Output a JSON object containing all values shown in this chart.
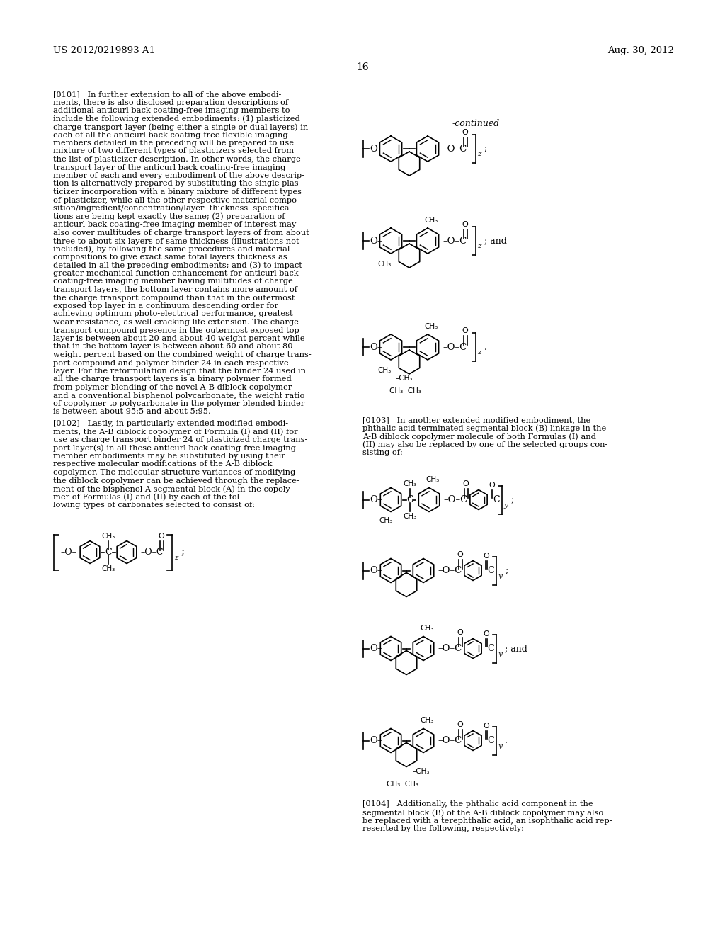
{
  "bg_color": "#ffffff",
  "header_left": "US 2012/0219893 A1",
  "header_right": "Aug. 30, 2012",
  "page_number": "16",
  "p101_lines": [
    "[0101]   In further extension to all of the above embodi-",
    "ments, there is also disclosed preparation descriptions of",
    "additional anticurl back coating-free imaging members to",
    "include the following extended embodiments: (1) plasticized",
    "charge transport layer (being either a single or dual layers) in",
    "each of all the anticurl back coating-free flexible imaging",
    "members detailed in the preceding will be prepared to use",
    "mixture of two different types of plasticizers selected from",
    "the list of plasticizer description. In other words, the charge",
    "transport layer of the anticurl back coating-free imaging",
    "member of each and every embodiment of the above descrip-",
    "tion is alternatively prepared by substituting the single plas-",
    "ticizer incorporation with a binary mixture of different types",
    "of plasticizer, while all the other respective material compo-",
    "sition/ingredient/concentration/layer  thickness  specifica-",
    "tions are being kept exactly the same; (2) preparation of",
    "anticurl back coating-free imaging member of interest may",
    "also cover multitudes of charge transport layers of from about",
    "three to about six layers of same thickness (illustrations not",
    "included), by following the same procedures and material",
    "compositions to give exact same total layers thickness as",
    "detailed in all the preceding embodiments; and (3) to impact",
    "greater mechanical function enhancement for anticurl back",
    "coating-free imaging member having multitudes of charge",
    "transport layers, the bottom layer contains more amount of",
    "the charge transport compound than that in the outermost",
    "exposed top layer in a continuum descending order for",
    "achieving optimum photo-electrical performance, greatest",
    "wear resistance, as well cracking life extension. The charge",
    "transport compound presence in the outermost exposed top",
    "layer is between about 20 and about 40 weight percent while",
    "that in the bottom layer is between about 60 and about 80",
    "weight percent based on the combined weight of charge trans-",
    "port compound and polymer binder 24 in each respective",
    "layer. For the reformulation design that the binder 24 used in",
    "all the charge transport layers is a binary polymer formed",
    "from polymer blending of the novel A-B diblock copolymer",
    "and a conventional bisphenol polycarbonate, the weight ratio",
    "of copolymer to polycarbonate in the polymer blended binder",
    "is between about 95:5 and about 5:95."
  ],
  "p102_lines": [
    "[0102]   Lastly, in particularly extended modified embodi-",
    "ments, the A-B diblock copolymer of Formula (I) and (II) for",
    "use as charge transport binder 24 of plasticized charge trans-",
    "port layer(s) in all these anticurl back coating-free imaging",
    "member embodiments may be substituted by using their",
    "respective molecular modifications of the A-B diblock",
    "copolymer. The molecular structure variances of modifying",
    "the diblock copolymer can be achieved through the replace-",
    "ment of the bisphenol A segmental block (A) in the copoly-",
    "mer of Formulas (I) and (II) by each of the fol-",
    "lowing types of carbonates selected to consist of:"
  ],
  "p103_lines": [
    "[0103]   In another extended modified embodiment, the",
    "phthalic acid terminated segmental block (B) linkage in the",
    "A-B diblock copolymer molecule of both Formulas (I) and",
    "(II) may also be replaced by one of the selected groups con-",
    "sisting of:"
  ],
  "p104_lines": [
    "[0104]   Additionally, the phthalic acid component in the",
    "segmental block (B) of the A-B diblock copolymer may also",
    "be replaced with a terephthalic acid, an isophthalic acid rep-",
    "resented by the following, respectively:"
  ]
}
